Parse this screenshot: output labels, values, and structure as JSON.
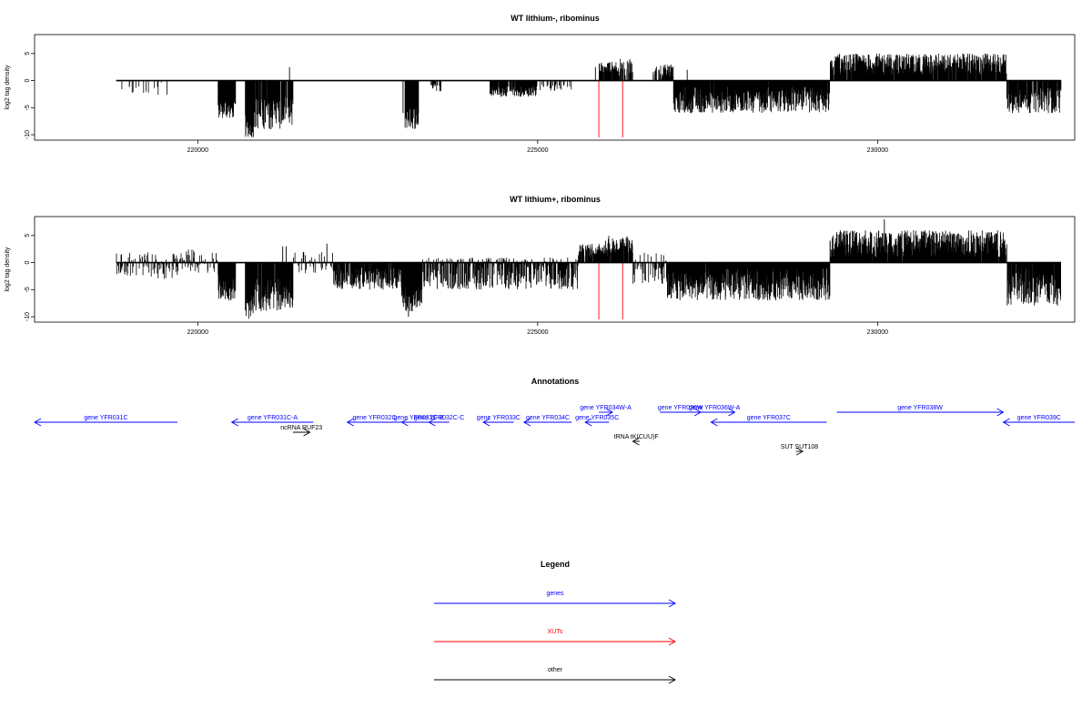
{
  "chart_data": [
    {
      "type": "bar",
      "title": "WT lithium-, ribominus",
      "ylabel": "log2 tag density",
      "xlabel": "",
      "xlim": [
        217600,
        232900
      ],
      "ylim": [
        -11,
        8.5
      ],
      "x_ticks": [
        "220000",
        "225000",
        "230000"
      ],
      "y_ticks": [
        "-10",
        "-5",
        "0",
        "5"
      ],
      "segments": [
        {
          "from": 218800,
          "to": 219600,
          "min": -3,
          "max": 0,
          "density": 0.12
        },
        {
          "from": 220300,
          "to": 220560,
          "min": -7,
          "max": -3,
          "density": 1.0
        },
        {
          "from": 220700,
          "to": 220820,
          "min": -10.5,
          "max": -6,
          "density": 1.0
        },
        {
          "from": 220820,
          "to": 221400,
          "min": -9,
          "max": -3,
          "density": 0.75
        },
        {
          "from": 223050,
          "to": 223250,
          "min": -9,
          "max": -4,
          "density": 1.0
        },
        {
          "from": 223400,
          "to": 223600,
          "min": -2,
          "max": 0,
          "density": 0.25
        },
        {
          "from": 224300,
          "to": 225000,
          "min": -3,
          "max": -1,
          "density": 0.7
        },
        {
          "from": 225000,
          "to": 225500,
          "min": -2,
          "max": 0,
          "density": 0.25
        },
        {
          "from": 225900,
          "to": 226200,
          "min": 1.5,
          "max": 3.5,
          "density": 0.8
        },
        {
          "from": 226200,
          "to": 226400,
          "min": 0.5,
          "max": 4,
          "density": 0.6
        },
        {
          "from": 226700,
          "to": 227000,
          "min": 0.5,
          "max": 3,
          "density": 0.5
        },
        {
          "from": 227000,
          "to": 229300,
          "min": -6,
          "max": -1,
          "density": 0.9
        },
        {
          "from": 229300,
          "to": 231900,
          "min": 1,
          "max": 5,
          "density": 0.85
        },
        {
          "from": 231900,
          "to": 232700,
          "min": -6,
          "max": -1,
          "density": 0.75
        }
      ],
      "spikes": [
        {
          "x": 221350,
          "y": 2.5
        },
        {
          "x": 223020,
          "y": -6
        },
        {
          "x": 225850,
          "y": 2.5
        },
        {
          "x": 226850,
          "y": 2.4
        },
        {
          "x": 227200,
          "y": 2
        },
        {
          "x": 229050,
          "y": -5
        }
      ],
      "xut_marks": [
        225900,
        226250
      ],
      "xut_ymin": -10.5
    },
    {
      "type": "bar",
      "title": "WT lithium+, ribominus",
      "ylabel": "log2 tag density",
      "xlabel": "",
      "xlim": [
        217600,
        232900
      ],
      "ylim": [
        -11,
        8.5
      ],
      "x_ticks": [
        "220000",
        "225000",
        "230000"
      ],
      "y_ticks": [
        "-10",
        "-5",
        "0",
        "5"
      ],
      "segments": [
        {
          "from": 218800,
          "to": 219700,
          "min": -3,
          "max": 2,
          "density": 0.35
        },
        {
          "from": 219700,
          "to": 220300,
          "min": -2,
          "max": 2.5,
          "density": 0.35
        },
        {
          "from": 220300,
          "to": 220560,
          "min": -7,
          "max": -2,
          "density": 1.0
        },
        {
          "from": 220700,
          "to": 220820,
          "min": -10.5,
          "max": -6,
          "density": 1.0
        },
        {
          "from": 220820,
          "to": 221400,
          "min": -9,
          "max": -3,
          "density": 0.8
        },
        {
          "from": 221400,
          "to": 222000,
          "min": -2,
          "max": 2,
          "density": 0.3
        },
        {
          "from": 222000,
          "to": 223000,
          "min": -5,
          "max": -1,
          "density": 0.7
        },
        {
          "from": 223000,
          "to": 223300,
          "min": -9,
          "max": -4,
          "density": 1.0
        },
        {
          "from": 223300,
          "to": 225600,
          "min": -5,
          "max": 1,
          "density": 0.65
        },
        {
          "from": 225600,
          "to": 226000,
          "min": 1,
          "max": 3.5,
          "density": 0.7
        },
        {
          "from": 226000,
          "to": 226400,
          "min": 1,
          "max": 5,
          "density": 0.8
        },
        {
          "from": 226400,
          "to": 226900,
          "min": -4,
          "max": 2,
          "density": 0.4
        },
        {
          "from": 226900,
          "to": 229300,
          "min": -7,
          "max": -1,
          "density": 0.95
        },
        {
          "from": 229300,
          "to": 231900,
          "min": 1,
          "max": 6,
          "density": 0.9
        },
        {
          "from": 231900,
          "to": 232700,
          "min": -8,
          "max": -1,
          "density": 0.85
        }
      ],
      "spikes": [
        {
          "x": 221250,
          "y": 3
        },
        {
          "x": 221300,
          "y": 3
        },
        {
          "x": 221900,
          "y": 3.5
        },
        {
          "x": 230100,
          "y": 8
        },
        {
          "x": 223100,
          "y": -10
        }
      ],
      "xut_marks": [
        225900,
        226250
      ],
      "xut_ymin": -10.5
    }
  ],
  "annotations": {
    "title": "Annotations",
    "xlim": [
      217600,
      232900
    ],
    "items": [
      {
        "label": "gene YFR031C",
        "start": 219700,
        "end": 217600,
        "lane": 0,
        "color": "#0000ff"
      },
      {
        "label": "gene YFR031C-A",
        "start": 221700,
        "end": 220500,
        "lane": 0,
        "color": "#0000ff"
      },
      {
        "label": "gene YFR032C",
        "start": 223000,
        "end": 222200,
        "lane": 0,
        "color": "#0000ff"
      },
      {
        "label": "gene YFR032C-B",
        "start": 223500,
        "end": 223000,
        "lane": 0,
        "color": "#0000ff"
      },
      {
        "label": "gene YFR032C-C",
        "start": 223700,
        "end": 223400,
        "lane": 0,
        "color": "#0000ff"
      },
      {
        "label": "gene YFR033C",
        "start": 224650,
        "end": 224200,
        "lane": 0,
        "color": "#0000ff"
      },
      {
        "label": "gene YFR034C",
        "start": 225500,
        "end": 224800,
        "lane": 0,
        "color": "#0000ff"
      },
      {
        "label": "gene YFR035C",
        "start": 226050,
        "end": 225700,
        "lane": 0,
        "color": "#0000ff"
      },
      {
        "label": "gene YFR037C",
        "start": 229250,
        "end": 227550,
        "lane": 0,
        "color": "#0000ff"
      },
      {
        "label": "gene YFR039C",
        "start": 233150,
        "end": 231850,
        "lane": 0,
        "color": "#0000ff"
      },
      {
        "label": "gene YFR034W-A",
        "start": 225900,
        "end": 226100,
        "lane": 1,
        "color": "#0000ff"
      },
      {
        "label": "gene YFR036W",
        "start": 226800,
        "end": 227400,
        "lane": 1,
        "color": "#0000ff"
      },
      {
        "label": "gene YFR036W-A",
        "start": 227300,
        "end": 227900,
        "lane": 1,
        "color": "#0000ff"
      },
      {
        "label": "gene YFR038W",
        "start": 229400,
        "end": 231850,
        "lane": 1,
        "color": "#0000ff"
      },
      {
        "label": "ncRNA RUF23",
        "start": 221400,
        "end": 221650,
        "lane": 2,
        "color": "#000000"
      },
      {
        "label": "tRNA tK(CUU)F",
        "start": 226500,
        "end": 226400,
        "lane": 3,
        "color": "#000000"
      },
      {
        "label": "SUT SUT108",
        "start": 228800,
        "end": 228900,
        "lane": 4,
        "color": "#000000"
      }
    ]
  },
  "legend": {
    "title": "Legend",
    "entries": [
      {
        "label": "genes",
        "color": "#0000ff"
      },
      {
        "label": "XUTs",
        "color": "#ff0000"
      },
      {
        "label": "other",
        "color": "#000000"
      }
    ]
  }
}
